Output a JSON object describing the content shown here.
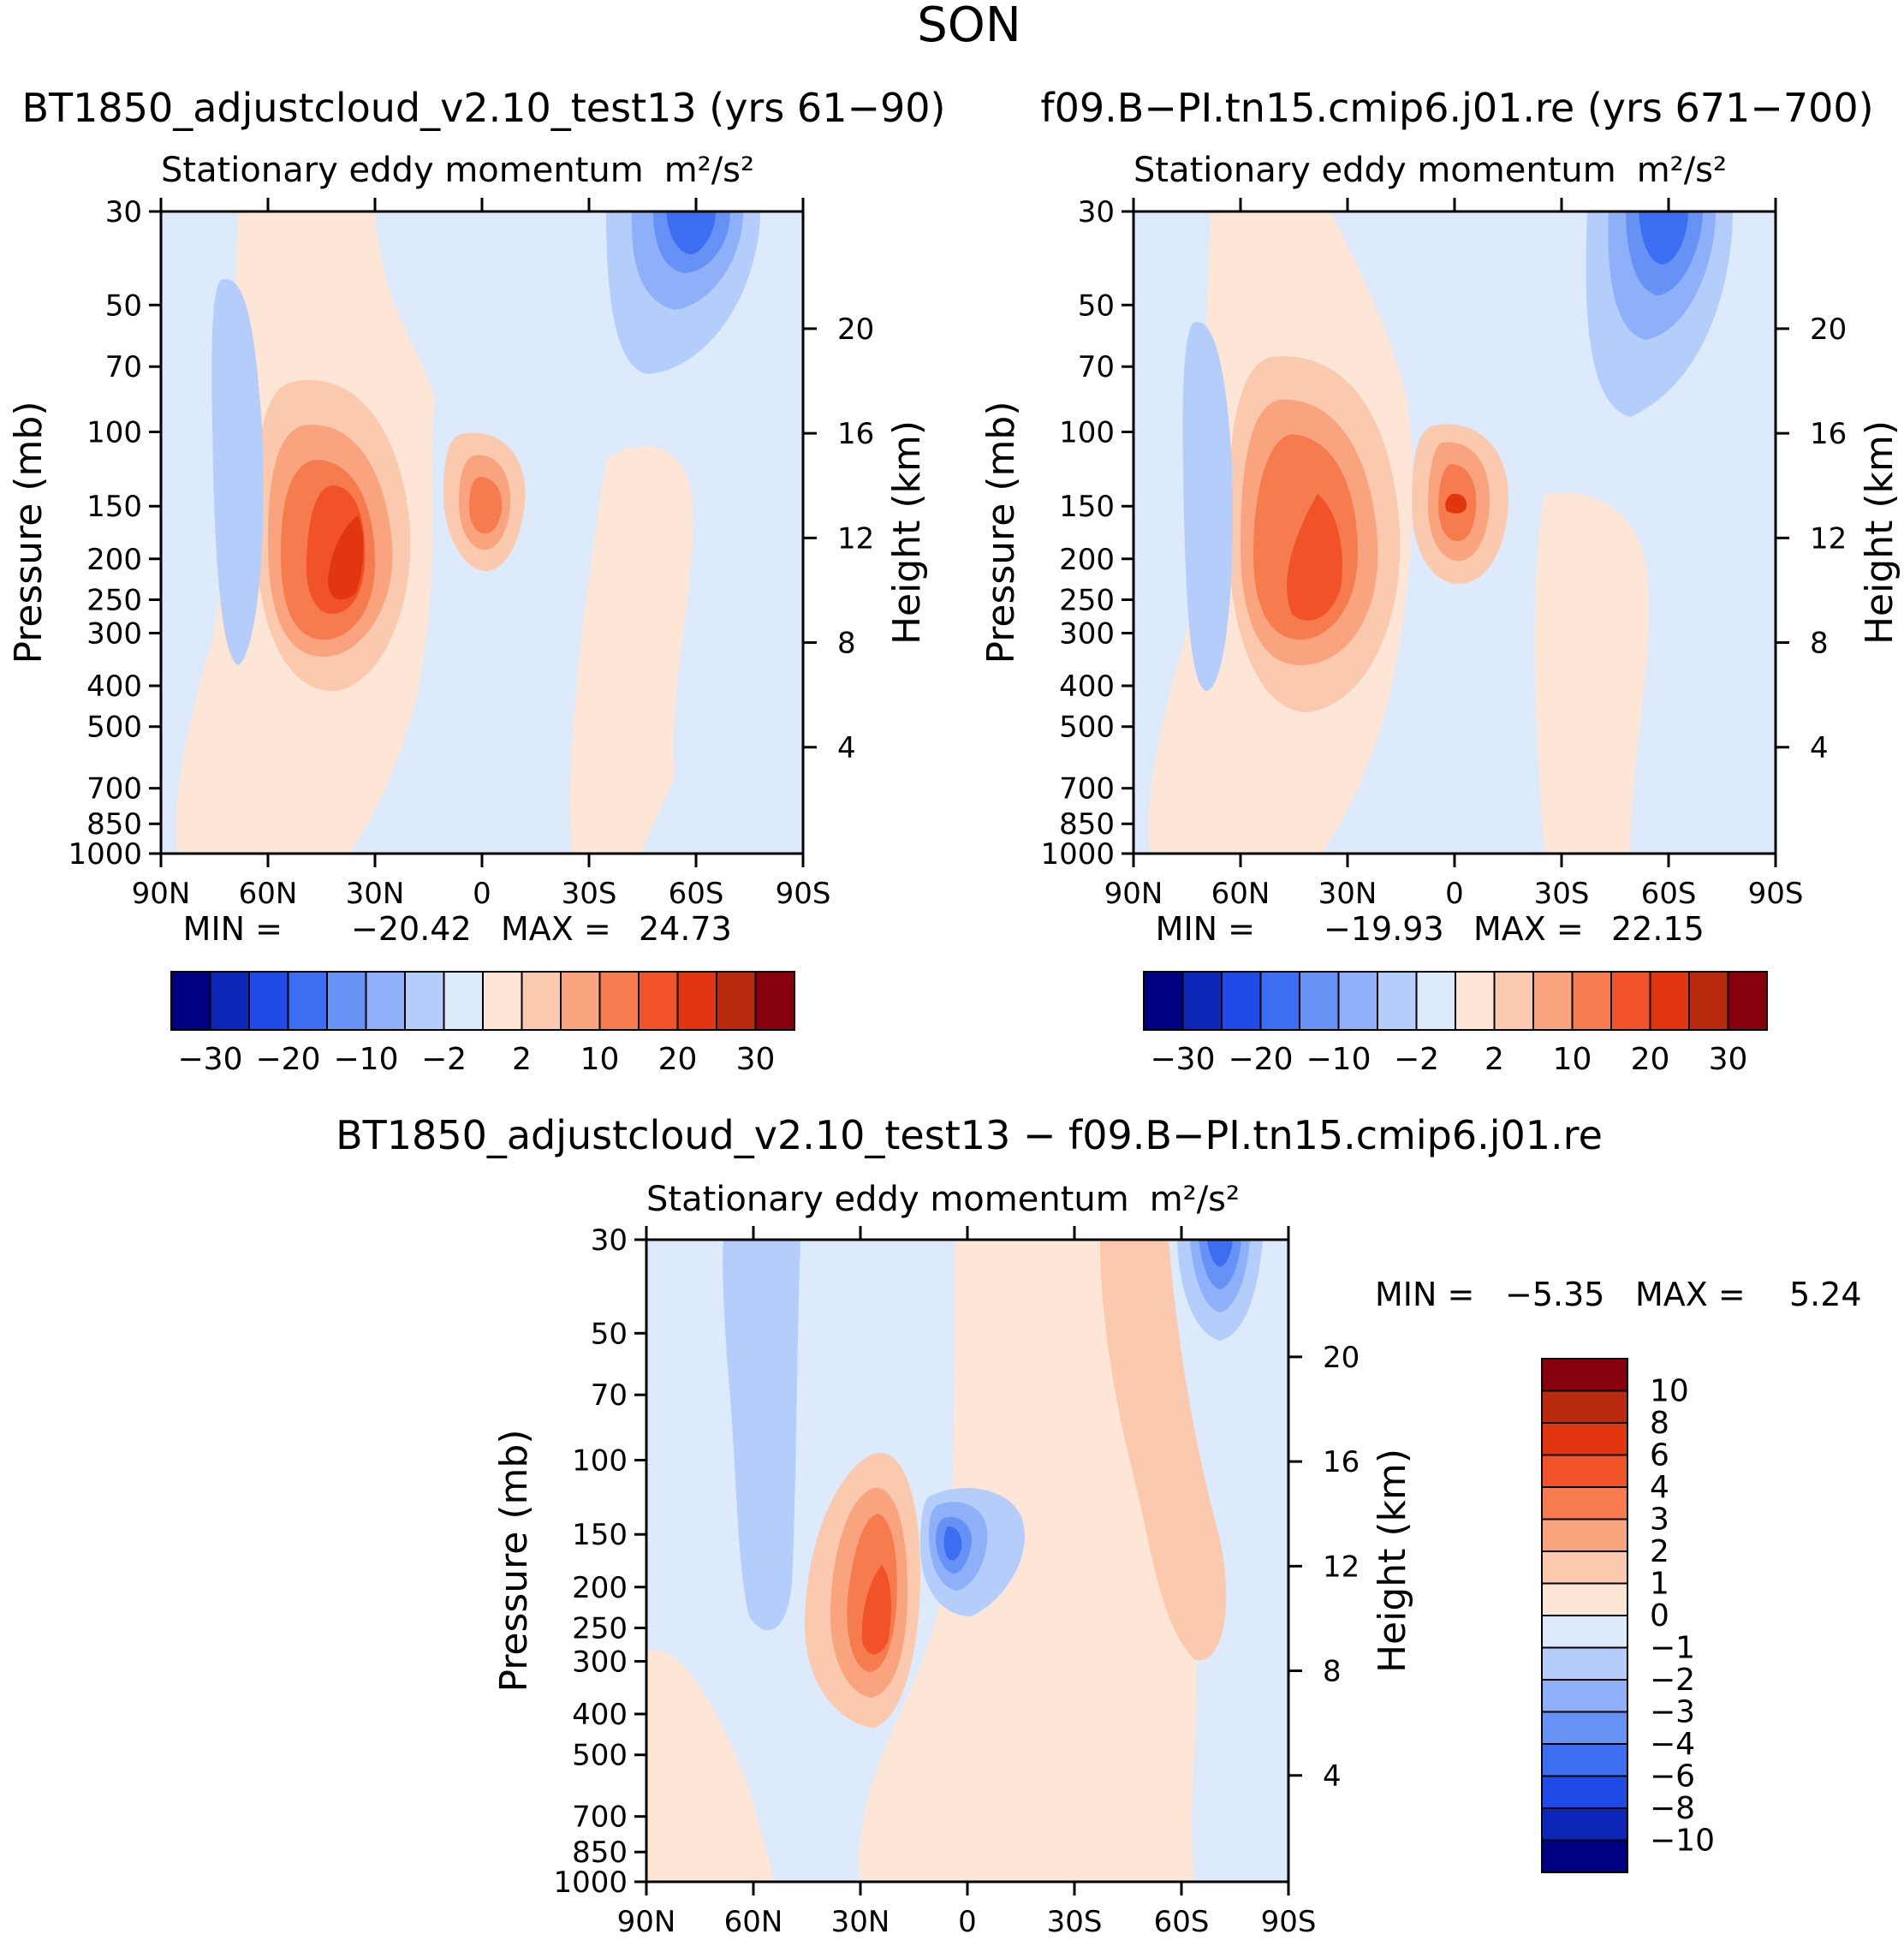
{
  "figure_title": "SON",
  "chart_data": [
    {
      "type": "contour",
      "case_title": "BT1850_adjustcloud_v2.10_test13 (yrs 61−90)",
      "subtitle": "Stationary eddy momentum",
      "units": "m²/s²",
      "ylabel_left": "Pressure (mb)",
      "ylabel_right": "Height (km)",
      "x_ticks": [
        "90N",
        "60N",
        "30N",
        "0",
        "30S",
        "60S",
        "90S"
      ],
      "p_ticks": [
        "30",
        "50",
        "70",
        "100",
        "150",
        "200",
        "250",
        "300",
        "400",
        "500",
        "700",
        "850",
        "1000"
      ],
      "z_ticks": [
        "20",
        "16",
        "12",
        "8",
        "4"
      ],
      "min_label": "MIN =",
      "min": "−20.42",
      "max_label": "MAX =",
      "max": "24.73",
      "colorbar_labels": [
        "−30",
        "−20",
        "−10",
        "−2",
        "2",
        "10",
        "20",
        "30"
      ],
      "features": [
        {
          "lat": 33,
          "p": 230,
          "value": 24.7
        },
        {
          "lat": -5,
          "p": 150,
          "value": 12
        },
        {
          "lat": -56,
          "p": 30,
          "value": -20.4
        },
        {
          "lat": 74,
          "p": 200,
          "value": -4
        },
        {
          "lat": -43,
          "p": 250,
          "value": 4
        }
      ]
    },
    {
      "type": "contour",
      "case_title": "f09.B−PI.tn15.cmip6.j01.re (yrs 671−700)",
      "subtitle": "Stationary eddy momentum",
      "units": "m²/s²",
      "ylabel_left": "Pressure (mb)",
      "ylabel_right": "Height (km)",
      "x_ticks": [
        "90N",
        "60N",
        "30N",
        "0",
        "30S",
        "60S",
        "90S"
      ],
      "p_ticks": [
        "30",
        "50",
        "70",
        "100",
        "150",
        "200",
        "250",
        "300",
        "400",
        "500",
        "700",
        "850",
        "1000"
      ],
      "z_ticks": [
        "20",
        "16",
        "12",
        "8",
        "4"
      ],
      "min_label": "MIN =",
      "min": "−19.93",
      "max_label": "MAX =",
      "max": "22.15",
      "colorbar_labels": [
        "−30",
        "−20",
        "−10",
        "−2",
        "2",
        "10",
        "20",
        "30"
      ],
      "features": [
        {
          "lat": 38,
          "p": 230,
          "value": 22.1
        },
        {
          "lat": -5,
          "p": 150,
          "value": 14
        },
        {
          "lat": -55,
          "p": 30,
          "value": -19.9
        },
        {
          "lat": 65,
          "p": 200,
          "value": -4
        }
      ]
    },
    {
      "type": "contour",
      "case_title": "BT1850_adjustcloud_v2.10_test13 − f09.B−PI.tn15.cmip6.j01.re",
      "subtitle": "Stationary eddy momentum",
      "units": "m²/s²",
      "ylabel_left": "Pressure (mb)",
      "ylabel_right": "Height (km)",
      "x_ticks": [
        "90N",
        "60N",
        "30N",
        "0",
        "30S",
        "60S",
        "90S"
      ],
      "p_ticks": [
        "30",
        "50",
        "70",
        "100",
        "150",
        "200",
        "250",
        "300",
        "400",
        "500",
        "700",
        "850",
        "1000"
      ],
      "z_ticks": [
        "20",
        "16",
        "12",
        "8",
        "4"
      ],
      "min_label": "MIN =",
      "min": "−5.35",
      "max_label": "MAX =",
      "max": "5.24",
      "colorbar_labels": [
        "10",
        "8",
        "6",
        "4",
        "3",
        "2",
        "1",
        "0",
        "−1",
        "−2",
        "−3",
        "−4",
        "−6",
        "−8",
        "−10"
      ],
      "features": [
        {
          "lat": 30,
          "p": 260,
          "value": 5.2
        },
        {
          "lat": 3,
          "p": 160,
          "value": -5.3
        },
        {
          "lat": -67,
          "p": 35,
          "value": -4
        },
        {
          "lat": -58,
          "p": 100,
          "value": 1.5
        }
      ]
    }
  ],
  "colors": {
    "full_scale": [
      "#000083",
      "#0d26b8",
      "#1f4ae6",
      "#3d6ef2",
      "#6691f5",
      "#8db0f8",
      "#b4cdfa",
      "#dceafb",
      "#fde6d6",
      "#fbc9ae",
      "#f9a47f",
      "#f67c4f",
      "#f25228",
      "#e23610",
      "#b92a0f",
      "#86000e"
    ],
    "diff_scale": [
      "#86000e",
      "#b92a0f",
      "#e23610",
      "#f25228",
      "#f67c4f",
      "#f9a47f",
      "#fbc9ae",
      "#fde6d6",
      "#dceafb",
      "#b4cdfa",
      "#8db0f8",
      "#6691f5",
      "#3d6ef2",
      "#1f4ae6",
      "#0d26b8",
      "#000083"
    ]
  }
}
